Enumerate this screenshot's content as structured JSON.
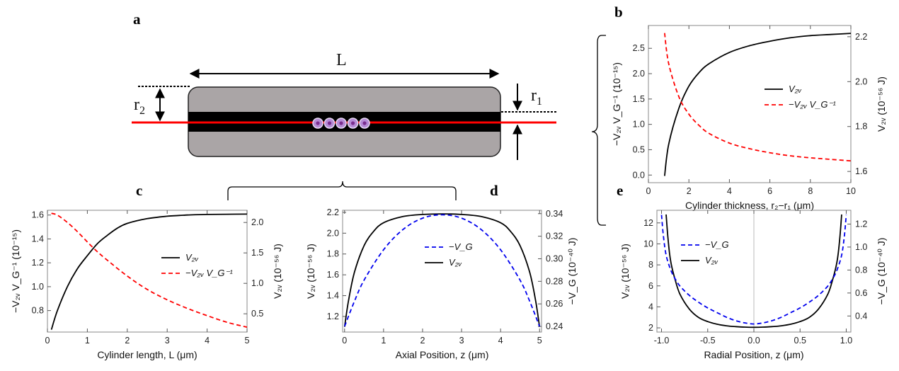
{
  "panel_letters": {
    "a": "a",
    "b": "b",
    "c": "c",
    "d": "d",
    "e": "e"
  },
  "diagram": {
    "length_label": "L",
    "r2_label": "r",
    "r2_sub": "2",
    "r1_label": "r",
    "r1_sub": "1",
    "colors": {
      "body": "#aaa5a6",
      "core": "#000000",
      "axis_line": "#ff0000",
      "particles": "#b58bd6"
    },
    "particle_count": 5
  },
  "colors": {
    "solid": "#000000",
    "dashed_red": "#ff0000",
    "dashed_blue": "#0000ee",
    "frame": "#888888"
  },
  "chart_data": [
    {
      "id": "b",
      "type": "line",
      "xlabel": "Cylinder thickness, r₂−r₁ (μm)",
      "ylabel_left": "−V₂ᵥ V_G⁻¹ (10⁻¹⁵)",
      "ylabel_right": "V₂ᵥ (10⁻⁵⁶ J)",
      "xlim": [
        0,
        10
      ],
      "ylim_left": [
        -0.15,
        2.95
      ],
      "ylim_right": [
        1.55,
        2.25
      ],
      "xticks": [
        0,
        2,
        4,
        6,
        8,
        10
      ],
      "yticks_left": [
        "0.0",
        "0.5",
        "1.0",
        "1.5",
        "2.0",
        "2.5"
      ],
      "yticks_right": [
        "1.6",
        "1.8",
        "2.0",
        "2.2"
      ],
      "legend": [
        "V₂ᵥ",
        "−V₂ᵥ V_G⁻¹"
      ],
      "legend_position": "center-right",
      "series": [
        {
          "name": "V₂ᵥ",
          "axis": "right",
          "style": "solid",
          "x": [
            0.8,
            1,
            1.5,
            2,
            2.5,
            3,
            4,
            5,
            6,
            7,
            8,
            9,
            10
          ],
          "y": [
            1.58,
            1.72,
            1.88,
            1.98,
            2.04,
            2.08,
            2.13,
            2.16,
            2.18,
            2.195,
            2.205,
            2.21,
            2.215
          ]
        },
        {
          "name": "−V₂ᵥ V_G⁻¹",
          "axis": "left",
          "style": "dashed",
          "x": [
            0.8,
            1,
            1.5,
            2,
            2.5,
            3,
            4,
            5,
            6,
            7,
            8,
            9,
            10
          ],
          "y": [
            2.8,
            2.2,
            1.55,
            1.2,
            0.98,
            0.82,
            0.63,
            0.52,
            0.44,
            0.38,
            0.34,
            0.31,
            0.28
          ]
        }
      ]
    },
    {
      "id": "c",
      "type": "line",
      "xlabel": "Cylinder length, L (μm)",
      "ylabel_left": "−V₂ᵥ V_G⁻¹ (10⁻¹⁵)",
      "ylabel_right": "V₂ᵥ (10⁻⁵⁶ J)",
      "xlim": [
        0,
        5
      ],
      "ylim_left": [
        0.62,
        1.64
      ],
      "ylim_right": [
        0.2,
        2.2
      ],
      "xticks": [
        0,
        1,
        2,
        3,
        4,
        5
      ],
      "yticks_left": [
        "0.8",
        "1.0",
        "1.2",
        "1.4",
        "1.6"
      ],
      "yticks_right": [
        "0.5",
        "1.0",
        "1.5",
        "2.0"
      ],
      "legend": [
        "V₂ᵥ",
        "−V₂ᵥ V_G⁻¹"
      ],
      "legend_position": "center-right",
      "series": [
        {
          "name": "V₂ᵥ",
          "axis": "left",
          "style": "solid",
          "x": [
            0.1,
            0.25,
            0.5,
            0.75,
            1,
            1.25,
            1.5,
            1.75,
            2,
            2.5,
            3,
            3.5,
            4,
            4.5,
            5
          ],
          "y": [
            0.64,
            0.8,
            1.0,
            1.15,
            1.26,
            1.36,
            1.43,
            1.49,
            1.53,
            1.57,
            1.59,
            1.6,
            1.605,
            1.607,
            1.608
          ]
        },
        {
          "name": "−V₂ᵥ V_G⁻¹",
          "axis": "right",
          "style": "dashed",
          "x": [
            0.1,
            0.25,
            0.5,
            0.75,
            1,
            1.25,
            1.5,
            2,
            2.5,
            3,
            3.5,
            4,
            4.5,
            5
          ],
          "y": [
            2.15,
            2.12,
            2.0,
            1.85,
            1.68,
            1.52,
            1.38,
            1.12,
            0.9,
            0.73,
            0.59,
            0.47,
            0.36,
            0.28
          ]
        }
      ]
    },
    {
      "id": "d",
      "type": "line",
      "xlabel": "Axial Position, z (μm)",
      "ylabel_left": "V₂ᵥ (10⁻⁵⁶ J)",
      "ylabel_right": "−V_G (10⁻⁴⁰ J)",
      "xlim": [
        -0.05,
        5.05
      ],
      "ylim_left": [
        1.05,
        2.22
      ],
      "ylim_right": [
        0.235,
        0.343
      ],
      "xticks": [
        0,
        1,
        2,
        3,
        4,
        5
      ],
      "yticks_left": [
        "1.2",
        "1.4",
        "1.6",
        "1.8",
        "2.0",
        "2.2"
      ],
      "yticks_right": [
        "0.24",
        "0.26",
        "0.28",
        "0.30",
        "0.32",
        "0.34"
      ],
      "legend": [
        "−V_G",
        "V₂ᵥ"
      ],
      "legend_position": "center",
      "series": [
        {
          "name": "V₂ᵥ",
          "axis": "left",
          "style": "solid",
          "x": [
            0,
            0.1,
            0.25,
            0.5,
            0.75,
            1,
            1.5,
            2,
            2.5,
            3,
            3.5,
            4,
            4.25,
            4.5,
            4.75,
            4.9,
            5
          ],
          "y": [
            1.1,
            1.35,
            1.62,
            1.88,
            2.02,
            2.1,
            2.16,
            2.18,
            2.185,
            2.18,
            2.16,
            2.1,
            2.02,
            1.88,
            1.62,
            1.35,
            1.1
          ]
        },
        {
          "name": "−V_G",
          "axis": "right",
          "style": "dashed",
          "x": [
            0,
            0.25,
            0.5,
            1,
            1.5,
            2,
            2.5,
            3,
            3.5,
            4,
            4.5,
            4.75,
            5
          ],
          "y": [
            0.24,
            0.262,
            0.281,
            0.308,
            0.326,
            0.336,
            0.339,
            0.336,
            0.326,
            0.308,
            0.281,
            0.262,
            0.24
          ]
        }
      ]
    },
    {
      "id": "e",
      "type": "line",
      "xlabel": "Radial Position, z (μm)",
      "ylabel_left": "V₂ᵥ (10⁻⁵⁶ J)",
      "ylabel_right": "−V_G (10⁻⁴⁰ J)",
      "xlim": [
        -1.05,
        1.05
      ],
      "ylim_left": [
        1.6,
        13.2
      ],
      "ylim_right": [
        0.26,
        1.32
      ],
      "xticks": [
        "-1.0",
        "-0.5",
        "0.0",
        "0.5",
        "1.0"
      ],
      "yticks_left": [
        "2",
        "4",
        "6",
        "8",
        "10",
        "12"
      ],
      "yticks_right": [
        "0.4",
        "0.6",
        "0.8",
        "1.0",
        "1.2"
      ],
      "legend": [
        "−V_G",
        "V₂ᵥ"
      ],
      "legend_position": "top-center",
      "series": [
        {
          "name": "V₂ᵥ",
          "axis": "left",
          "style": "solid",
          "x": [
            -0.95,
            -0.93,
            -0.9,
            -0.85,
            -0.8,
            -0.7,
            -0.6,
            -0.5,
            -0.4,
            -0.3,
            -0.2,
            -0.1,
            0,
            0.1,
            0.2,
            0.3,
            0.4,
            0.5,
            0.6,
            0.7,
            0.8,
            0.85,
            0.9,
            0.93,
            0.95
          ],
          "y": [
            12.8,
            10.5,
            8.3,
            6.5,
            5.2,
            3.8,
            3.0,
            2.6,
            2.35,
            2.2,
            2.12,
            2.07,
            2.05,
            2.07,
            2.12,
            2.2,
            2.35,
            2.6,
            3.0,
            3.8,
            5.2,
            6.5,
            8.3,
            10.5,
            12.8
          ]
        },
        {
          "name": "−V_G",
          "axis": "right",
          "style": "dashed",
          "x": [
            -1.0,
            -0.98,
            -0.95,
            -0.9,
            -0.85,
            -0.8,
            -0.7,
            -0.6,
            -0.5,
            -0.4,
            -0.3,
            -0.2,
            -0.1,
            0,
            0.1,
            0.2,
            0.3,
            0.4,
            0.5,
            0.6,
            0.7,
            0.8,
            0.85,
            0.9,
            0.95,
            0.98,
            1.0
          ],
          "y": [
            1.28,
            1.1,
            0.93,
            0.8,
            0.72,
            0.66,
            0.58,
            0.52,
            0.47,
            0.43,
            0.39,
            0.36,
            0.34,
            0.33,
            0.34,
            0.36,
            0.39,
            0.43,
            0.47,
            0.52,
            0.58,
            0.66,
            0.72,
            0.8,
            0.93,
            1.1,
            1.28
          ]
        }
      ]
    }
  ]
}
